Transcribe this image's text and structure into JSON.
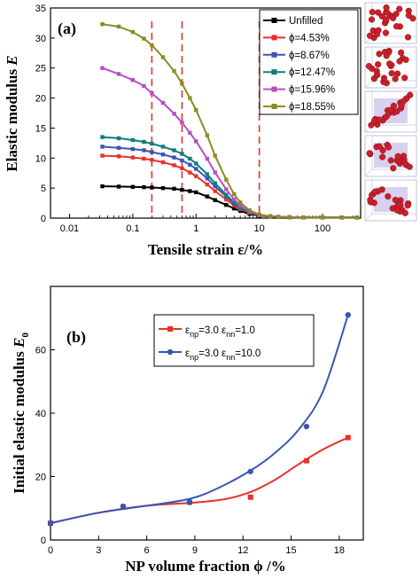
{
  "chart_data": [
    {
      "panel": "(a)",
      "type": "line",
      "xscale": "log",
      "xlim": [
        0.005,
        400
      ],
      "ylim": [
        0,
        35
      ],
      "xticks": [
        0.01,
        0.1,
        1,
        10,
        100
      ],
      "xtick_labels": [
        "0.01",
        "0.1",
        "1",
        "10",
        "100"
      ],
      "yticks": [
        0,
        5,
        10,
        15,
        20,
        25,
        30,
        35
      ],
      "xlabel": "Tensile strain ε/%",
      "ylabel_main": "Elastic modulus ",
      "ylabel_sym": "E",
      "vlines": [
        0.2,
        0.6,
        10
      ],
      "vline_color": "#e8322b",
      "legend_position": "top-right",
      "x": [
        0.033,
        0.06,
        0.1,
        0.15,
        0.2,
        0.3,
        0.45,
        0.6,
        0.8,
        1,
        1.5,
        2,
        3,
        4,
        5,
        7,
        10,
        15,
        20,
        30,
        50,
        100,
        200,
        350
      ],
      "series": [
        {
          "name": "Unfilled",
          "color": "#000000",
          "marker": "square",
          "values": [
            5.3,
            5.25,
            5.2,
            5.15,
            5.1,
            5.0,
            4.9,
            4.7,
            4.5,
            4.3,
            3.6,
            3.0,
            2.2,
            1.6,
            1.2,
            0.7,
            0.4,
            0.25,
            0.2,
            0.15,
            0.12,
            0.1,
            0.1,
            0.1
          ]
        },
        {
          "name": "ϕ=4.53%",
          "color": "#e8322b",
          "marker": "square",
          "values": [
            10.4,
            10.3,
            10.1,
            9.9,
            9.7,
            9.3,
            8.8,
            8.3,
            7.6,
            7.0,
            5.6,
            4.5,
            3.1,
            2.1,
            1.5,
            0.9,
            0.5,
            0.3,
            0.2,
            0.15,
            0.12,
            0.1,
            0.1,
            0.1
          ]
        },
        {
          "name": "ϕ=8.67%",
          "color": "#3a55b4",
          "marker": "square",
          "values": [
            11.9,
            11.7,
            11.5,
            11.3,
            11.0,
            10.6,
            10.1,
            9.6,
            8.9,
            8.2,
            6.6,
            5.3,
            3.6,
            2.4,
            1.7,
            1.0,
            0.5,
            0.3,
            0.2,
            0.15,
            0.12,
            0.1,
            0.1,
            0.1
          ]
        },
        {
          "name": "ϕ=12.47%",
          "color": "#0f7d7b",
          "marker": "square",
          "values": [
            13.5,
            13.3,
            13.0,
            12.7,
            12.4,
            11.9,
            11.3,
            10.7,
            9.9,
            9.1,
            7.3,
            5.8,
            3.9,
            2.6,
            1.8,
            1.0,
            0.5,
            0.3,
            0.2,
            0.15,
            0.12,
            0.1,
            0.1,
            0.1
          ]
        },
        {
          "name": "ϕ=15.96%",
          "color": "#b54fc2",
          "marker": "square",
          "values": [
            25.0,
            24.0,
            23.0,
            22.0,
            20.8,
            19.2,
            17.4,
            15.9,
            14.2,
            12.8,
            9.9,
            7.6,
            4.8,
            3.1,
            2.1,
            1.1,
            0.5,
            0.3,
            0.2,
            0.15,
            0.12,
            0.1,
            0.1,
            0.1
          ]
        },
        {
          "name": "ϕ=18.55%",
          "color": "#8c8c23",
          "marker": "square",
          "values": [
            32.3,
            31.9,
            31.0,
            29.9,
            28.8,
            26.8,
            24.5,
            22.4,
            20.0,
            18.0,
            13.8,
            10.4,
            6.4,
            4.0,
            2.6,
            1.3,
            0.6,
            0.3,
            0.2,
            0.15,
            0.12,
            0.1,
            0.1,
            0.1
          ]
        }
      ],
      "insets": [
        {
          "name": "snapshot-1",
          "particles": "dispersed"
        },
        {
          "name": "snapshot-2",
          "particles": "dispersed"
        },
        {
          "name": "snapshot-3",
          "particles": "chain"
        },
        {
          "name": "snapshot-4",
          "particles": "clustered"
        },
        {
          "name": "snapshot-5",
          "particles": "clustered"
        }
      ]
    },
    {
      "panel": "(b)",
      "type": "scatter",
      "xlim": [
        0,
        19.5
      ],
      "ylim": [
        0,
        80
      ],
      "xticks": [
        0,
        3,
        6,
        9,
        12,
        15,
        18
      ],
      "yticks": [
        0,
        20,
        40,
        60
      ],
      "xlabel": "NP volume fraction ϕ /%",
      "ylabel_main": "Initial elastic modulus ",
      "ylabel_sym": "E",
      "ylabel_sub": "0",
      "legend_position": "top-right",
      "x": [
        0,
        4.53,
        8.67,
        12.47,
        15.96,
        18.55
      ],
      "series": [
        {
          "name": "ε_np=3.0 ε_nn=1.0",
          "legend": {
            "a": "ε",
            "a_sub": "np",
            "mid": "=3.0 ε",
            "b_sub": "nn",
            "end": "=1.0"
          },
          "color": "#e8322b",
          "marker": "square",
          "values": [
            5.3,
            10.4,
            11.9,
            13.5,
            25.0,
            32.3
          ],
          "fit": [
            [
              0,
              5.3
            ],
            [
              3,
              8.6
            ],
            [
              6,
              10.8
            ],
            [
              9,
              11.8
            ],
            [
              11,
              13
            ],
            [
              12.5,
              15.2
            ],
            [
              14,
              19
            ],
            [
              15.5,
              24
            ],
            [
              17,
              28.6
            ],
            [
              18.55,
              32.3
            ]
          ]
        },
        {
          "name": "ε_np=3.0 ε_nn=10.0",
          "legend": {
            "a": "ε",
            "a_sub": "np",
            "mid": "=3.0 ε",
            "b_sub": "nn",
            "end": "=10.0"
          },
          "color": "#3a55b4",
          "marker": "circle",
          "values": [
            5.3,
            10.6,
            11.9,
            21.6,
            35.8,
            71.0
          ],
          "fit": [
            [
              0,
              5.3
            ],
            [
              3,
              8.6
            ],
            [
              6,
              10.8
            ],
            [
              8.7,
              13
            ],
            [
              10.5,
              16.5
            ],
            [
              12.5,
              22
            ],
            [
              14,
              27.5
            ],
            [
              15.5,
              35
            ],
            [
              17,
              47
            ],
            [
              18.55,
              71
            ]
          ]
        }
      ]
    }
  ]
}
